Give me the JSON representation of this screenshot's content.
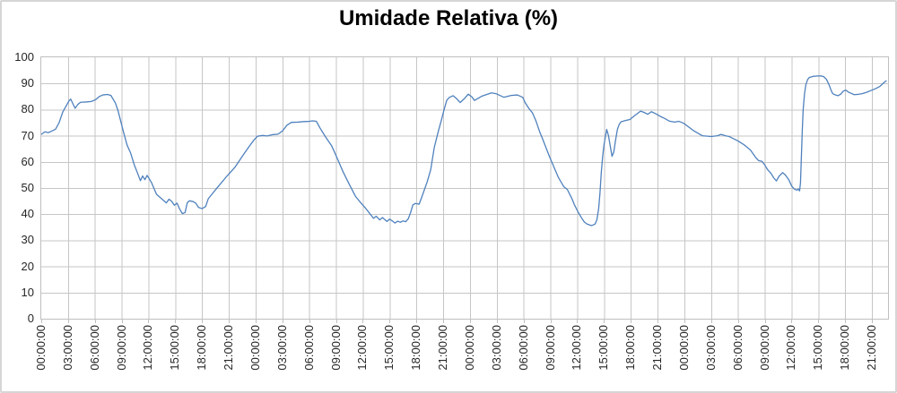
{
  "window": {
    "title": "Umidade Relativa (%)"
  },
  "colors": {
    "series_line": "#4F81BD",
    "gridline": "#C6C6C6",
    "plot_border": "#BFBFBF",
    "axis_text": "#262626",
    "title_text": "#000000",
    "frame_border": "#D6D6D6",
    "background": "#FFFFFF"
  },
  "chart_data": {
    "type": "line",
    "title": "Umidade Relativa (%)",
    "xlabel": "",
    "ylabel": "",
    "legend": "none",
    "grid": true,
    "x_unit": "hours-elapsed",
    "x_domain": [
      0,
      94.8
    ],
    "y_domain": [
      0,
      100
    ],
    "y_ticks": [
      0,
      10,
      20,
      30,
      40,
      50,
      60,
      70,
      80,
      90,
      100
    ],
    "x_tick_interval_hours": 3,
    "x_tick_labels": [
      "00:00:00",
      "03:00:00",
      "06:00:00",
      "09:00:00",
      "12:00:00",
      "15:00:00",
      "18:00:00",
      "21:00:00",
      "00:00:00",
      "03:00:00",
      "06:00:00",
      "09:00:00",
      "12:00:00",
      "15:00:00",
      "18:00:00",
      "21:00:00",
      "00:00:00",
      "03:00:00",
      "06:00:00",
      "09:00:00",
      "12:00:00",
      "15:00:00",
      "18:00:00",
      "21:00:00",
      "00:00:00",
      "03:00:00",
      "06:00:00",
      "09:00:00",
      "12:00:00",
      "15:00:00",
      "18:00:00",
      "21:00:00"
    ],
    "series": [
      {
        "name": "Umidade Relativa",
        "color": "#4F81BD",
        "points": [
          [
            0,
            70.5
          ],
          [
            0.4,
            71.5
          ],
          [
            0.8,
            71.2
          ],
          [
            1.2,
            71.8
          ],
          [
            1.6,
            72.5
          ],
          [
            2,
            75
          ],
          [
            2.4,
            79
          ],
          [
            2.8,
            81.5
          ],
          [
            3.1,
            83.3
          ],
          [
            3.3,
            84
          ],
          [
            3.6,
            81.8
          ],
          [
            3.8,
            80.5
          ],
          [
            4.1,
            82
          ],
          [
            4.4,
            82.8
          ],
          [
            5,
            82.9
          ],
          [
            5.6,
            83.1
          ],
          [
            6.1,
            83.8
          ],
          [
            6.5,
            85
          ],
          [
            6.9,
            85.6
          ],
          [
            7.4,
            85.8
          ],
          [
            7.8,
            85.4
          ],
          [
            8.3,
            82.5
          ],
          [
            8.6,
            79.5
          ],
          [
            9.2,
            71.5
          ],
          [
            9.6,
            66.5
          ],
          [
            10,
            63.4
          ],
          [
            10.4,
            59
          ],
          [
            10.8,
            55.5
          ],
          [
            11.1,
            52.8
          ],
          [
            11.35,
            54.6
          ],
          [
            11.6,
            53.2
          ],
          [
            11.85,
            54.8
          ],
          [
            12.1,
            53.5
          ],
          [
            12.35,
            52
          ],
          [
            12.6,
            50
          ],
          [
            12.9,
            47.6
          ],
          [
            13.3,
            46.4
          ],
          [
            13.7,
            45.2
          ],
          [
            14,
            44.3
          ],
          [
            14.3,
            45.7
          ],
          [
            14.6,
            44.9
          ],
          [
            14.9,
            43.4
          ],
          [
            15.2,
            44.2
          ],
          [
            15.5,
            41.9
          ],
          [
            15.8,
            40.2
          ],
          [
            16.1,
            40.6
          ],
          [
            16.35,
            44.4
          ],
          [
            16.6,
            45.1
          ],
          [
            17,
            44.8
          ],
          [
            17.3,
            44.2
          ],
          [
            17.6,
            42.6
          ],
          [
            18,
            42.1
          ],
          [
            18.4,
            42.9
          ],
          [
            18.7,
            45.9
          ],
          [
            19.1,
            47.6
          ],
          [
            19.7,
            50.1
          ],
          [
            20.7,
            54.2
          ],
          [
            21.7,
            58
          ],
          [
            22.7,
            63.1
          ],
          [
            23.3,
            66
          ],
          [
            23.8,
            68.3
          ],
          [
            24.2,
            69.8
          ],
          [
            24.8,
            70.1
          ],
          [
            25.3,
            69.9
          ],
          [
            25.9,
            70.4
          ],
          [
            26.5,
            70.6
          ],
          [
            27,
            71.8
          ],
          [
            27.5,
            74
          ],
          [
            28,
            75.1
          ],
          [
            28.7,
            75.2
          ],
          [
            29.4,
            75.4
          ],
          [
            30,
            75.5
          ],
          [
            30.4,
            75.7
          ],
          [
            30.8,
            75.5
          ],
          [
            31.2,
            73
          ],
          [
            31.8,
            69.7
          ],
          [
            32.5,
            66.2
          ],
          [
            33,
            62.4
          ],
          [
            33.8,
            56.1
          ],
          [
            34.5,
            51.3
          ],
          [
            35.2,
            46.7
          ],
          [
            35.9,
            43.8
          ],
          [
            36.3,
            42.3
          ],
          [
            36.9,
            39.7
          ],
          [
            37.2,
            38.4
          ],
          [
            37.5,
            39.2
          ],
          [
            37.9,
            37.8
          ],
          [
            38.2,
            38.7
          ],
          [
            38.7,
            37.2
          ],
          [
            39,
            38.1
          ],
          [
            39.3,
            37.4
          ],
          [
            39.6,
            36.6
          ],
          [
            39.9,
            37.3
          ],
          [
            40.2,
            36.9
          ],
          [
            40.5,
            37.4
          ],
          [
            40.8,
            37.1
          ],
          [
            41.1,
            38.3
          ],
          [
            41.35,
            40.6
          ],
          [
            41.6,
            43.5
          ],
          [
            41.9,
            44.1
          ],
          [
            42.3,
            43.8
          ],
          [
            42.6,
            46.5
          ],
          [
            42.9,
            49.4
          ],
          [
            43.2,
            52.3
          ],
          [
            43.6,
            57
          ],
          [
            44,
            65.5
          ],
          [
            44.4,
            71
          ],
          [
            44.8,
            76
          ],
          [
            45.1,
            80
          ],
          [
            45.4,
            83.6
          ],
          [
            45.7,
            84.7
          ],
          [
            46.1,
            85.3
          ],
          [
            46.5,
            84.2
          ],
          [
            46.9,
            82.7
          ],
          [
            47.4,
            84.3
          ],
          [
            47.8,
            85.9
          ],
          [
            48.2,
            84.9
          ],
          [
            48.5,
            83.5
          ],
          [
            49.3,
            85.1
          ],
          [
            50,
            85.9
          ],
          [
            50.4,
            86.4
          ],
          [
            50.9,
            86.1
          ],
          [
            51.8,
            84.7
          ],
          [
            52.6,
            85.4
          ],
          [
            53.3,
            85.6
          ],
          [
            53.9,
            84.7
          ],
          [
            54.2,
            82.5
          ],
          [
            54.6,
            80.4
          ],
          [
            55,
            78.7
          ],
          [
            55.4,
            75.5
          ],
          [
            55.8,
            71.5
          ],
          [
            56.1,
            69
          ],
          [
            56.9,
            62
          ],
          [
            57.9,
            54
          ],
          [
            58.5,
            50.5
          ],
          [
            58.9,
            49.4
          ],
          [
            59.4,
            46
          ],
          [
            59.7,
            43.5
          ],
          [
            60.1,
            40.8
          ],
          [
            60.5,
            38.5
          ],
          [
            60.8,
            37
          ],
          [
            61.1,
            36.2
          ],
          [
            61.6,
            35.6
          ],
          [
            62,
            36.2
          ],
          [
            62.2,
            37.8
          ],
          [
            62.4,
            42
          ],
          [
            62.55,
            48
          ],
          [
            62.7,
            56
          ],
          [
            62.85,
            62
          ],
          [
            63,
            66.5
          ],
          [
            63.3,
            72.4
          ],
          [
            63.5,
            70.1
          ],
          [
            63.7,
            66.1
          ],
          [
            63.9,
            62.1
          ],
          [
            64.1,
            63.8
          ],
          [
            64.3,
            68.4
          ],
          [
            64.5,
            72.4
          ],
          [
            64.7,
            74.3
          ],
          [
            64.9,
            75.3
          ],
          [
            65.4,
            75.8
          ],
          [
            65.9,
            76.2
          ],
          [
            66.4,
            77.6
          ],
          [
            67.1,
            79.4
          ],
          [
            67.5,
            78.9
          ],
          [
            67.9,
            78.2
          ],
          [
            68.3,
            79.2
          ],
          [
            68.8,
            78.4
          ],
          [
            69.3,
            77.4
          ],
          [
            69.8,
            76.6
          ],
          [
            70.3,
            75.6
          ],
          [
            70.9,
            75.2
          ],
          [
            71.4,
            75.5
          ],
          [
            71.9,
            74.8
          ],
          [
            73,
            72
          ],
          [
            74,
            70
          ],
          [
            75,
            69.7
          ],
          [
            75.7,
            70
          ],
          [
            76.1,
            70.5
          ],
          [
            76.6,
            70
          ],
          [
            77,
            69.7
          ],
          [
            77.7,
            68.5
          ],
          [
            78,
            68
          ],
          [
            78.7,
            66.5
          ],
          [
            79.4,
            64.5
          ],
          [
            80,
            61.6
          ],
          [
            80.3,
            60.5
          ],
          [
            80.7,
            60.2
          ],
          [
            81,
            58.8
          ],
          [
            81.3,
            57.1
          ],
          [
            81.7,
            55.6
          ],
          [
            82,
            53.9
          ],
          [
            82.3,
            52.7
          ],
          [
            82.6,
            54.5
          ],
          [
            83,
            55.9
          ],
          [
            83.3,
            55
          ],
          [
            83.7,
            53.1
          ],
          [
            84,
            50.8
          ],
          [
            84.3,
            49.6
          ],
          [
            84.6,
            49.2
          ],
          [
            84.75,
            49.6
          ],
          [
            84.9,
            48.9
          ],
          [
            85,
            52
          ],
          [
            85.1,
            62
          ],
          [
            85.2,
            72
          ],
          [
            85.3,
            80
          ],
          [
            85.45,
            86
          ],
          [
            85.6,
            89.5
          ],
          [
            85.8,
            91.5
          ],
          [
            86,
            92.3
          ],
          [
            86.4,
            92.7
          ],
          [
            86.9,
            92.85
          ],
          [
            87.3,
            92.9
          ],
          [
            87.6,
            92.6
          ],
          [
            87.9,
            91.6
          ],
          [
            88.2,
            89.5
          ],
          [
            88.4,
            87.6
          ],
          [
            88.6,
            86.1
          ],
          [
            88.9,
            85.6
          ],
          [
            89.2,
            85.3
          ],
          [
            89.5,
            85.9
          ],
          [
            89.8,
            87.1
          ],
          [
            90.1,
            87.4
          ],
          [
            90.4,
            86.6
          ],
          [
            90.7,
            86.2
          ],
          [
            91,
            85.7
          ],
          [
            91.4,
            85.8
          ],
          [
            91.9,
            86.1
          ],
          [
            92.4,
            86.6
          ],
          [
            92.9,
            87.3
          ],
          [
            93.4,
            88
          ],
          [
            93.9,
            88.9
          ],
          [
            94.3,
            90.2
          ],
          [
            94.6,
            91
          ]
        ]
      }
    ]
  }
}
